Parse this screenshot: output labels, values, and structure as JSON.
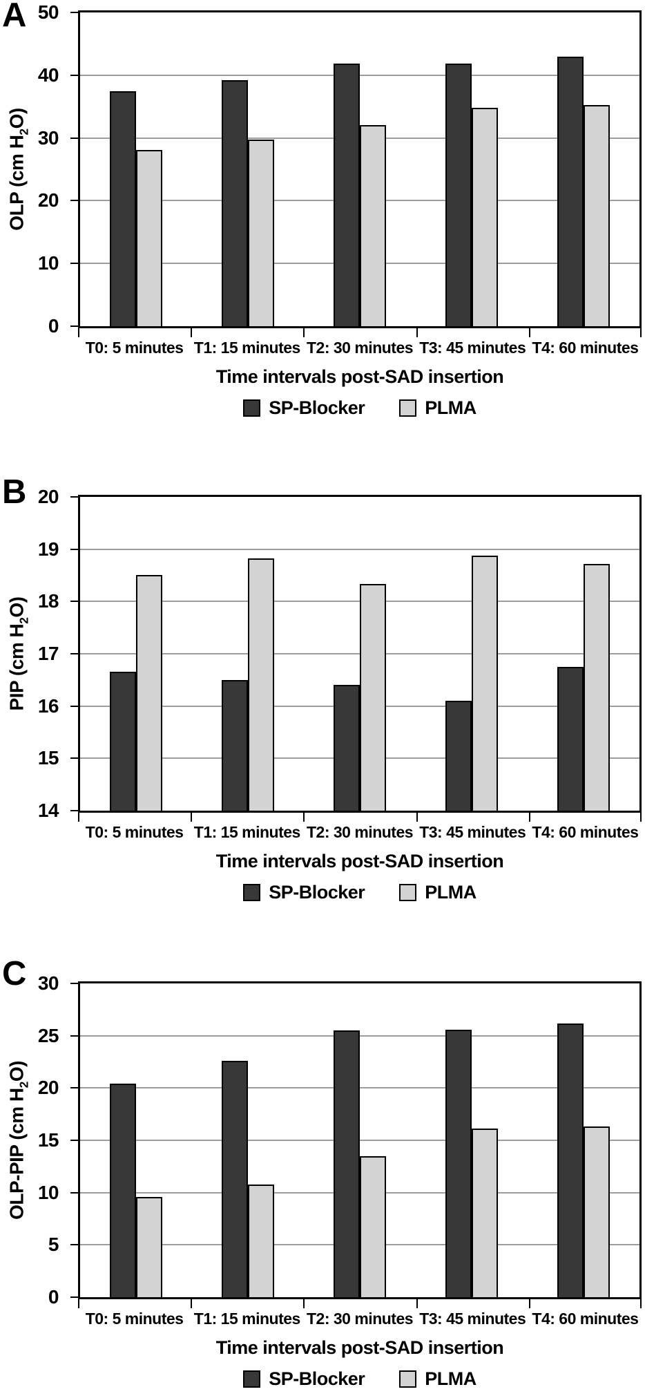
{
  "chart_data": [
    {
      "panel": "A",
      "type": "bar",
      "title": "",
      "ylabel": "OLP (cm H2O)",
      "xlabel": "Time intervals post-SAD insertion",
      "categories": [
        "T0: 5 minutes",
        "T1: 15 minutes",
        "T2: 30 minutes",
        "T3: 45 minutes",
        "T4: 60 minutes"
      ],
      "series": [
        {
          "name": "SP-Blocker",
          "color": "#383838",
          "values": [
            37.4,
            39.2,
            41.9,
            41.8,
            42.9
          ]
        },
        {
          "name": "PLMA",
          "color": "#d3d3d3",
          "values": [
            28.1,
            29.7,
            32.0,
            34.8,
            35.2
          ]
        }
      ],
      "ylim": [
        0,
        50
      ],
      "ytick_step": 10,
      "grid": true,
      "legend_position": "bottom"
    },
    {
      "panel": "B",
      "type": "bar",
      "title": "",
      "ylabel": "PIP (cm H2O)",
      "xlabel": "Time intervals post-SAD insertion",
      "categories": [
        "T0: 5 minutes",
        "T1: 15 minutes",
        "T2: 30 minutes",
        "T3: 45 minutes",
        "T4: 60 minutes"
      ],
      "series": [
        {
          "name": "SP-Blocker",
          "color": "#383838",
          "values": [
            16.65,
            16.5,
            16.4,
            16.1,
            16.75
          ]
        },
        {
          "name": "PLMA",
          "color": "#d3d3d3",
          "values": [
            18.5,
            18.82,
            18.33,
            18.88,
            18.72
          ]
        }
      ],
      "ylim": [
        14,
        20
      ],
      "ytick_step": 1,
      "grid": true,
      "legend_position": "bottom"
    },
    {
      "panel": "C",
      "type": "bar",
      "title": "",
      "ylabel": "OLP-PIP (cm H2O)",
      "xlabel": "Time intervals post-SAD insertion",
      "categories": [
        "T0: 5 minutes",
        "T1: 15 minutes",
        "T2: 30 minutes",
        "T3: 45 minutes",
        "T4: 60 minutes"
      ],
      "series": [
        {
          "name": "SP-Blocker",
          "color": "#383838",
          "values": [
            20.4,
            22.6,
            25.5,
            25.6,
            26.2
          ]
        },
        {
          "name": "PLMA",
          "color": "#d3d3d3",
          "values": [
            9.6,
            10.8,
            13.5,
            16.1,
            16.3
          ]
        }
      ],
      "ylim": [
        0,
        30
      ],
      "ytick_step": 5,
      "grid": true,
      "legend_position": "bottom"
    }
  ]
}
